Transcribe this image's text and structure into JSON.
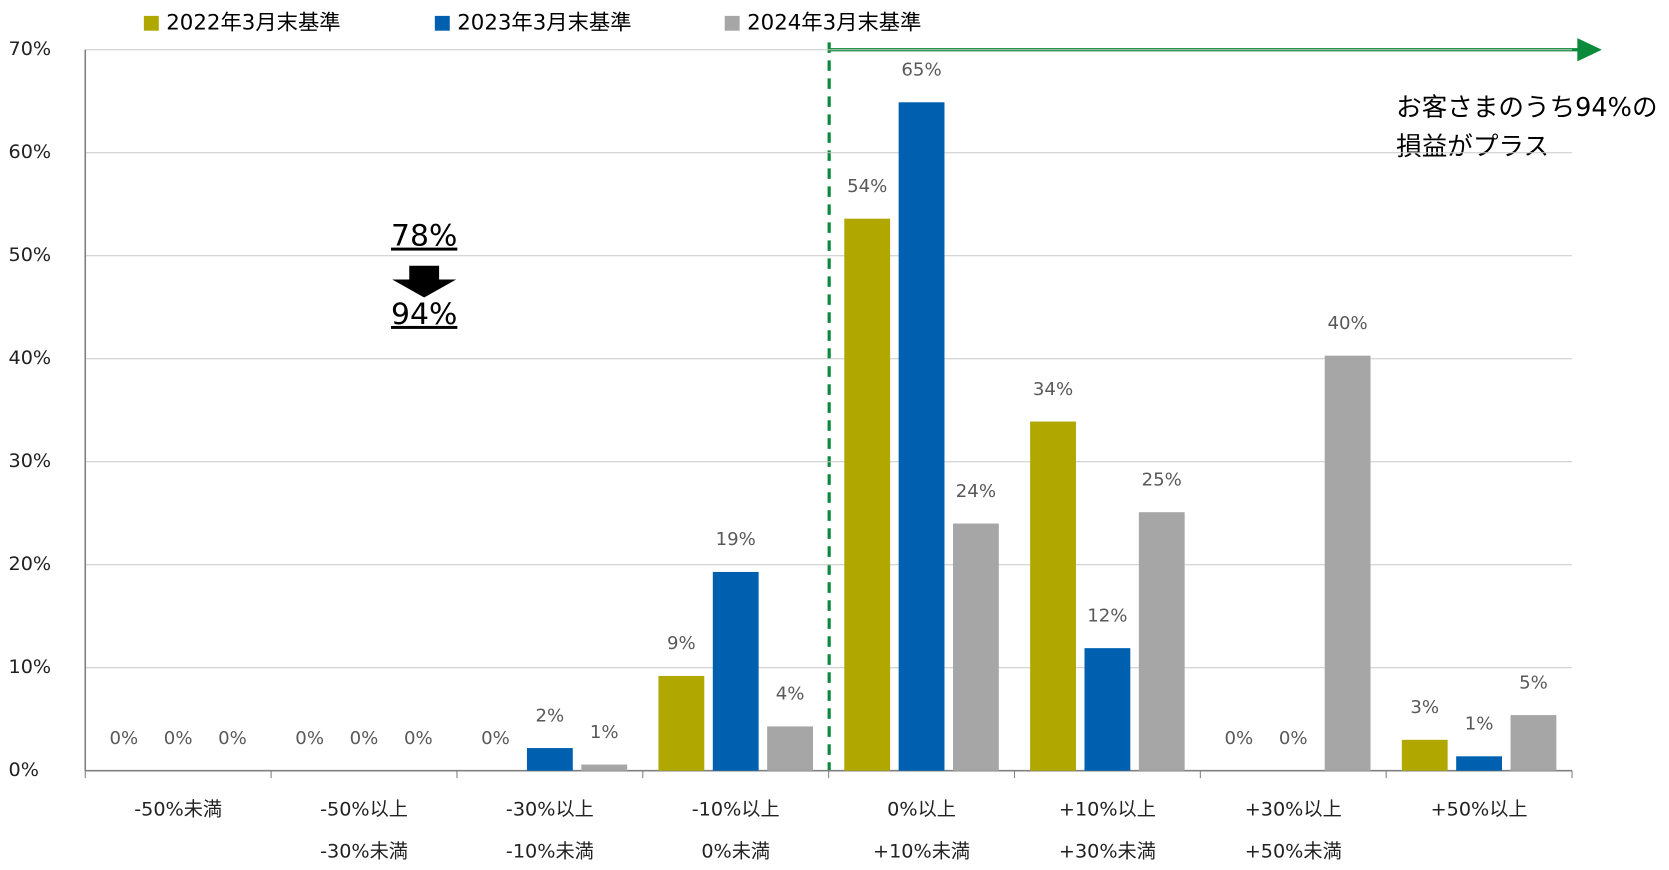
{
  "chart_data": {
    "type": "bar",
    "categories": [
      [
        "-50%未満"
      ],
      [
        "-50%以上",
        "-30%未満"
      ],
      [
        "-30%以上",
        "-10%未満"
      ],
      [
        "-10%以上",
        "0%未満"
      ],
      [
        "0%以上",
        "+10%未満"
      ],
      [
        "+10%以上",
        "+30%未満"
      ],
      [
        "+30%以上",
        "+50%未満"
      ],
      [
        "+50%以上"
      ]
    ],
    "series": [
      {
        "name": "2022年3月末基準",
        "color": "#b0a800",
        "values": [
          0,
          0,
          0,
          9.2,
          53.6,
          33.9,
          0,
          3.0
        ],
        "value_labels": [
          "0%",
          "0%",
          "0%",
          "9%",
          "54%",
          "34%",
          "0%",
          "3%"
        ]
      },
      {
        "name": "2023年3月末基準",
        "color": "#0060b0",
        "values": [
          0,
          0,
          2.2,
          19.3,
          64.9,
          11.9,
          0,
          1.4
        ],
        "value_labels": [
          "0%",
          "0%",
          "2%",
          "19%",
          "65%",
          "12%",
          "0%",
          "1%"
        ]
      },
      {
        "name": "2024年3月末基準",
        "color": "#a6a6a6",
        "values": [
          0,
          0,
          0.6,
          4.3,
          24.0,
          25.1,
          40.3,
          5.4
        ],
        "value_labels": [
          "0%",
          "0%",
          "1%",
          "4%",
          "24%",
          "25%",
          "40%",
          "5%"
        ]
      }
    ],
    "ylim": [
      0,
      70
    ],
    "yticks": [
      {
        "value": 0,
        "label": "0%"
      },
      {
        "value": 10,
        "label": "10%"
      },
      {
        "value": 20,
        "label": "20%"
      },
      {
        "value": 30,
        "label": "30%"
      },
      {
        "value": 40,
        "label": "40%"
      },
      {
        "value": 50,
        "label": "50%"
      },
      {
        "value": 60,
        "label": "60%"
      },
      {
        "value": 70,
        "label": "70%"
      }
    ],
    "grid": true,
    "legend": "top",
    "annotations": [
      "78%",
      "94%",
      "お客さまのうち94%の",
      "損益がプラス"
    ]
  }
}
